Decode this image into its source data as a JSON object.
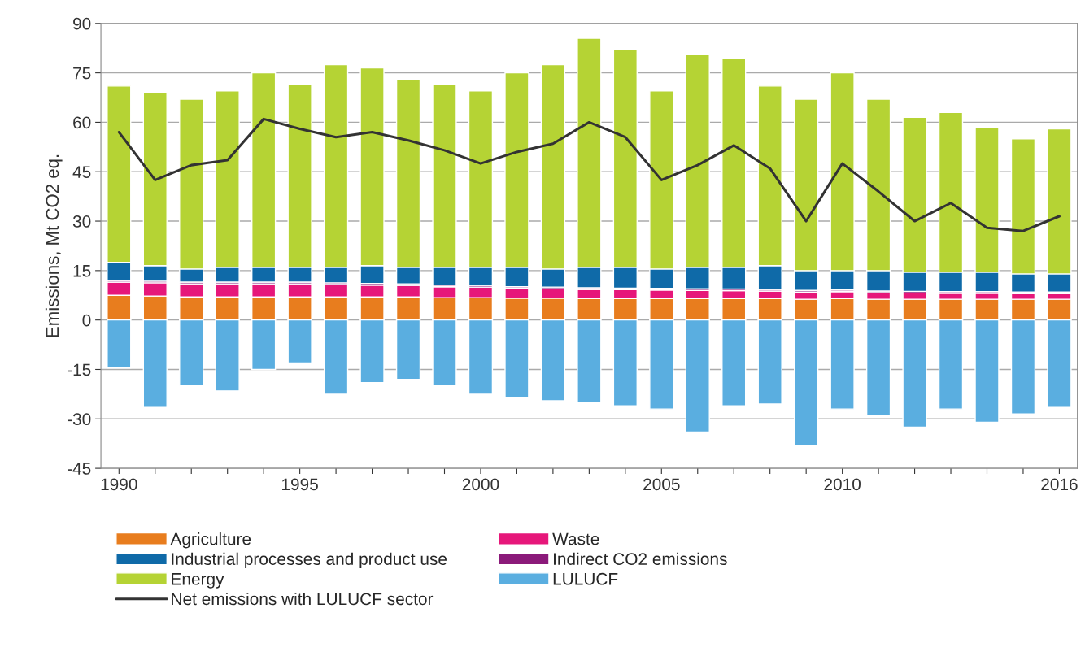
{
  "chart_data": {
    "type": "bar",
    "stacked": true,
    "ylabel": "Emissions, Mt CO2 eq.",
    "x": [
      1990,
      1991,
      1992,
      1993,
      1994,
      1995,
      1996,
      1997,
      1998,
      1999,
      2000,
      2001,
      2002,
      2003,
      2004,
      2005,
      2006,
      2007,
      2008,
      2009,
      2010,
      2011,
      2012,
      2013,
      2014,
      2015,
      2016
    ],
    "xlim": [
      1989.5,
      2016.5
    ],
    "xticks": [
      1990,
      {
        "value": 1991,
        "label": null
      },
      {
        "value": 1992,
        "label": null
      },
      {
        "value": 1993,
        "label": null
      },
      {
        "value": 1994,
        "label": null
      },
      1995,
      {
        "value": 1996,
        "label": null
      },
      {
        "value": 1997,
        "label": null
      },
      {
        "value": 1998,
        "label": null
      },
      {
        "value": 1999,
        "label": null
      },
      2000,
      {
        "value": 2001,
        "label": null
      },
      {
        "value": 2002,
        "label": null
      },
      {
        "value": 2003,
        "label": null
      },
      {
        "value": 2004,
        "label": null
      },
      2005,
      {
        "value": 2006,
        "label": null
      },
      {
        "value": 2007,
        "label": null
      },
      {
        "value": 2008,
        "label": null
      },
      {
        "value": 2009,
        "label": null
      },
      2010,
      {
        "value": 2011,
        "label": null
      },
      {
        "value": 2012,
        "label": null
      },
      {
        "value": 2013,
        "label": null
      },
      {
        "value": 2014,
        "label": null
      },
      {
        "value": 2015,
        "label": null
      },
      2016
    ],
    "ylim": [
      -45,
      90
    ],
    "yticks": [
      -45,
      -30,
      -15,
      0,
      15,
      30,
      45,
      60,
      75,
      90
    ],
    "grid": "y",
    "legend": "bottom",
    "series": [
      {
        "name": "Agriculture",
        "color": "#e87d1e",
        "values": [
          7.5,
          7.3,
          7.0,
          7.0,
          7.0,
          7.0,
          7.0,
          7.0,
          7.0,
          6.8,
          6.8,
          6.6,
          6.6,
          6.5,
          6.5,
          6.5,
          6.5,
          6.5,
          6.5,
          6.3,
          6.5,
          6.3,
          6.3,
          6.3,
          6.3,
          6.3,
          6.3
        ]
      },
      {
        "name": "Waste",
        "color": "#e6177a",
        "values": [
          4.0,
          4.0,
          4.0,
          4.0,
          4.0,
          4.0,
          3.8,
          3.6,
          3.5,
          3.3,
          3.2,
          3.0,
          2.9,
          2.8,
          2.7,
          2.6,
          2.5,
          2.4,
          2.3,
          2.2,
          2.1,
          2.0,
          1.9,
          1.8,
          1.8,
          1.7,
          1.7
        ]
      },
      {
        "name": "Indirect CO2 emissions",
        "color": "#8b1a7a",
        "values": [
          0.5,
          0.5,
          0.5,
          0.5,
          0.5,
          0.5,
          0.5,
          0.5,
          0.5,
          0.5,
          0.5,
          0.5,
          0.5,
          0.5,
          0.5,
          0.5,
          0.5,
          0.5,
          0.5,
          0.5,
          0.5,
          0.5,
          0.5,
          0.5,
          0.5,
          0.5,
          0.5
        ]
      },
      {
        "name": "Industrial processes and product use",
        "color": "#0f6aa8",
        "values": [
          5.5,
          4.7,
          4.0,
          4.5,
          4.5,
          4.5,
          4.7,
          5.4,
          5.0,
          5.4,
          5.5,
          5.9,
          5.5,
          6.2,
          6.3,
          5.9,
          6.5,
          6.6,
          7.2,
          6.0,
          5.9,
          6.2,
          5.8,
          5.9,
          5.9,
          5.5,
          5.5
        ]
      },
      {
        "name": "Energy",
        "color": "#b5d334",
        "values": [
          53.5,
          52.5,
          51.5,
          53.5,
          59,
          55.5,
          61.5,
          60,
          57,
          55.5,
          53.5,
          59,
          62,
          69.5,
          66,
          54,
          64.5,
          63.5,
          54.5,
          52,
          60,
          52,
          47,
          48.5,
          44,
          41,
          44
        ]
      },
      {
        "name": "LULUCF",
        "color": "#5aaee0",
        "values": [
          -14.5,
          -26.5,
          -20,
          -21.5,
          -15,
          -13,
          -22.5,
          -19,
          -18,
          -20,
          -22.5,
          -23.5,
          -24.5,
          -25,
          -26,
          -27,
          -34,
          -26,
          -25.5,
          -38,
          -27,
          -29,
          -32.5,
          -27,
          -31,
          -28.5,
          -26.5
        ]
      },
      {
        "name": "Net emissions with LULUCF sector",
        "type": "line",
        "color": "#333333",
        "line_style": "solid",
        "values": [
          57,
          42.5,
          47,
          48.5,
          61,
          58,
          55.5,
          57,
          54.5,
          51.5,
          47.5,
          51,
          53.5,
          60,
          55.5,
          42.5,
          47,
          53,
          46,
          30,
          47.5,
          39,
          30,
          35.5,
          28,
          27,
          31.5
        ]
      }
    ]
  }
}
